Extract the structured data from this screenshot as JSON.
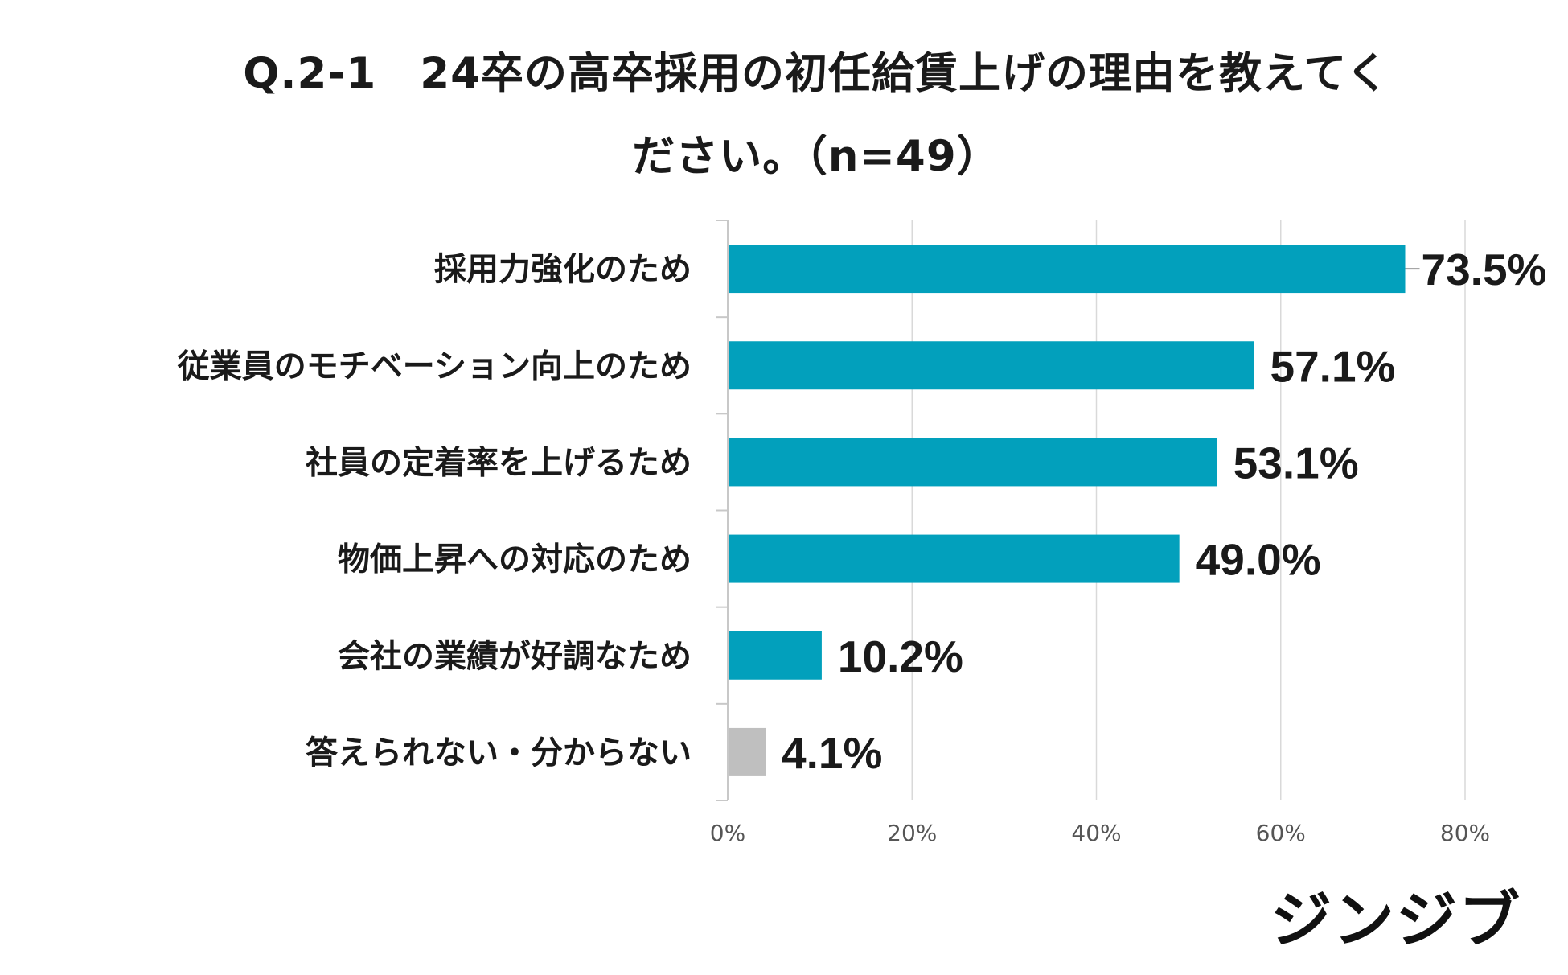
{
  "title_line1": "Q.2-1　24卒の高卒採用の初任給賃上げの理由を教えてく",
  "title_line2": "ださい。（n=49）",
  "brand": "ジンジブ",
  "colors": {
    "bar": "#02a0bc",
    "bar_other": "#bfbfbf",
    "grid": "#d9d9d9",
    "axis": "#c8c8c8"
  },
  "chart_data": {
    "type": "bar",
    "orientation": "horizontal",
    "categories": [
      "採用力強化のため",
      "従業員のモチベーション向上のため",
      "社員の定着率を上げるため",
      "物価上昇への対応のため",
      "会社の業績が好調なため",
      "答えられない・分からない"
    ],
    "values": [
      73.5,
      57.1,
      53.1,
      49.0,
      10.2,
      4.1
    ],
    "value_labels": [
      "73.5%",
      "57.1%",
      "53.1%",
      "49.0%",
      "10.2%",
      "4.1%"
    ],
    "xlim": [
      0,
      80
    ],
    "xticks": [
      0,
      20,
      40,
      60,
      80
    ],
    "xtick_labels": [
      "0%",
      "20%",
      "40%",
      "60%",
      "80%"
    ],
    "grid": true,
    "title": "Q.2-1　24卒の高卒採用の初任給賃上げの理由を教えてください。（n=49）"
  }
}
